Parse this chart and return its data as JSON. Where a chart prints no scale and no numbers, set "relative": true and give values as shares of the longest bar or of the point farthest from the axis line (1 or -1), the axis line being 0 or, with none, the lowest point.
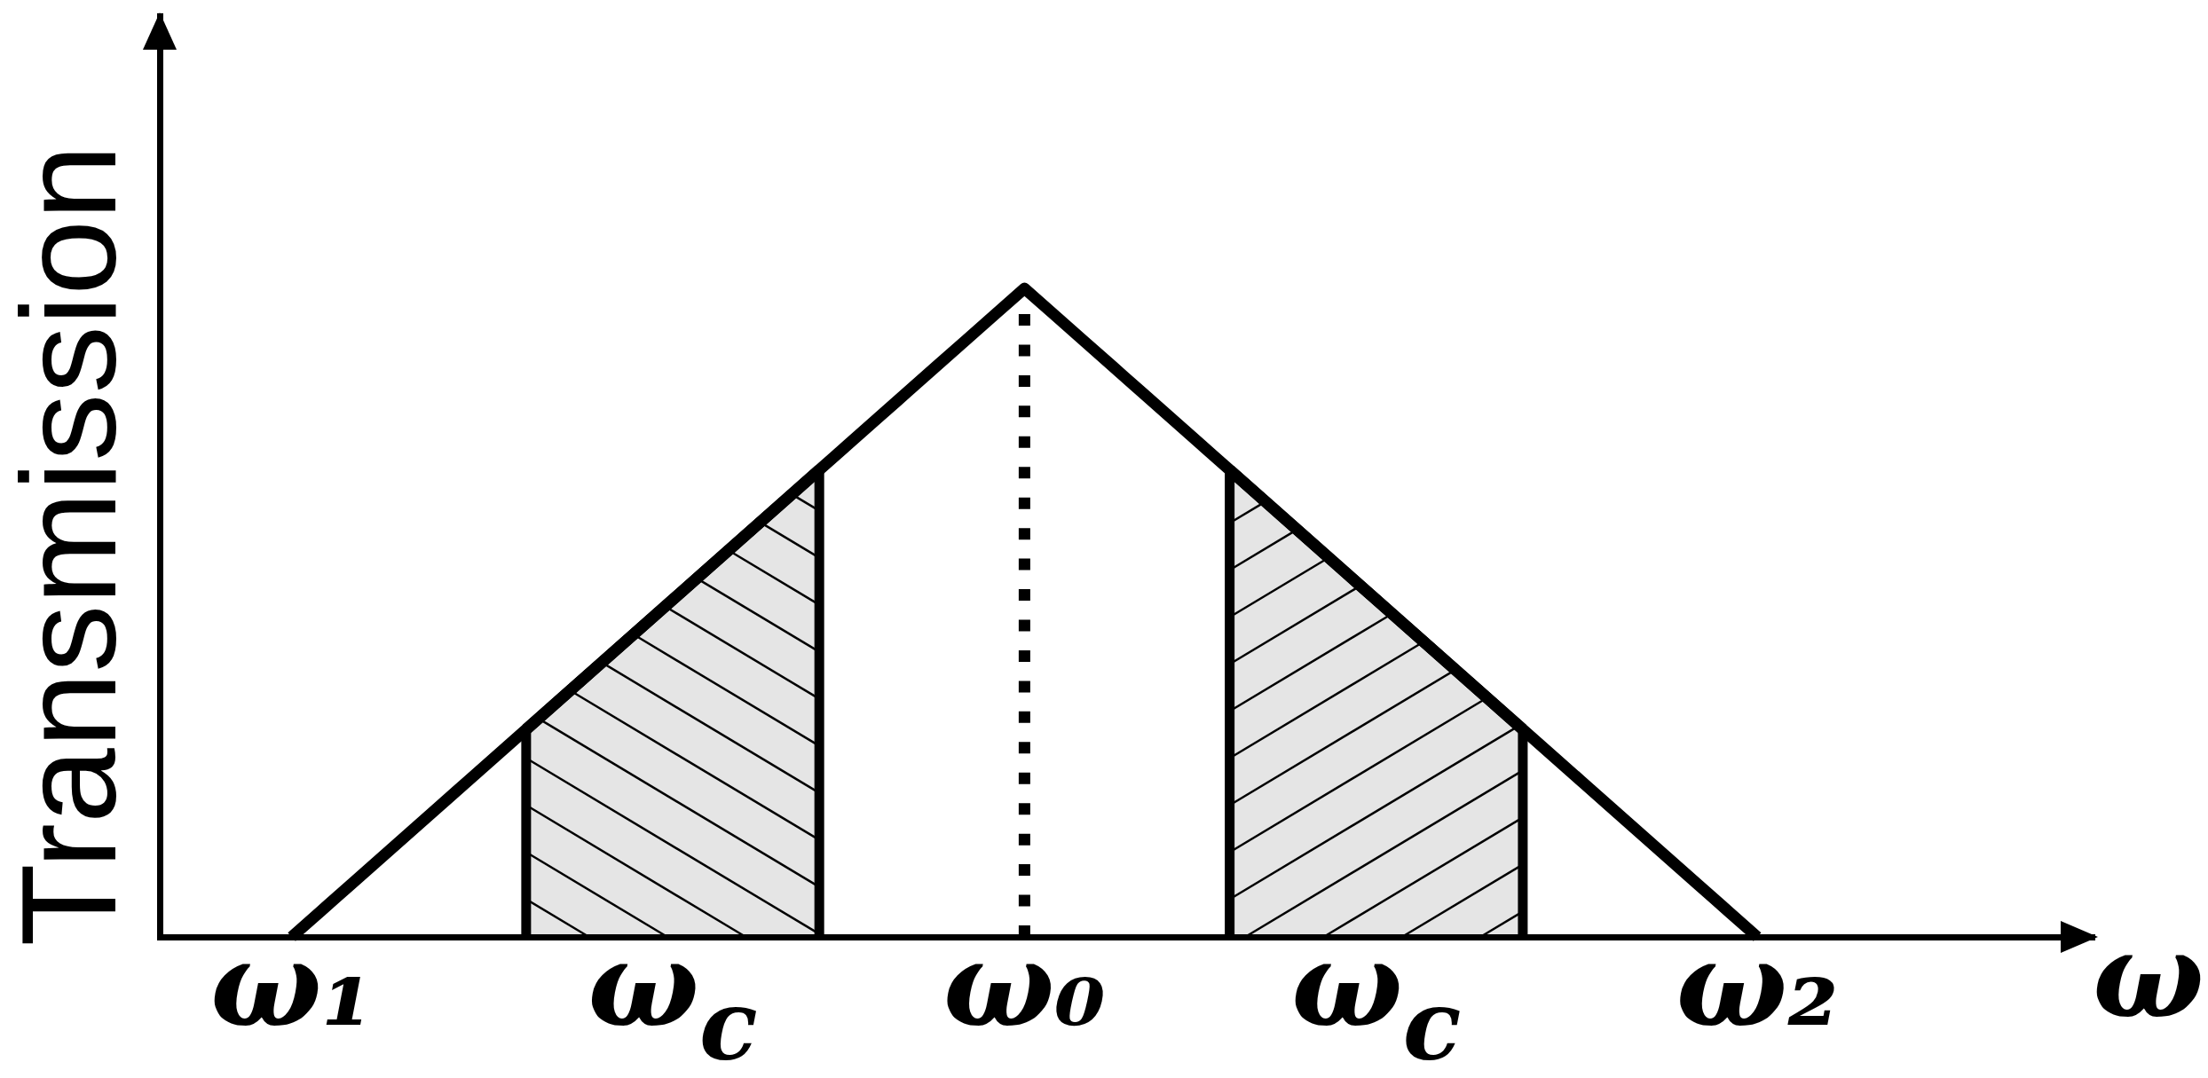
{
  "chart_data": {
    "type": "line",
    "xlabel": "ω",
    "ylabel": "Transmission",
    "relative": true,
    "categories": [
      null,
      null,
      null,
      null,
      "ω₁",
      null,
      null,
      null,
      null,
      null,
      null,
      null,
      null,
      null,
      null,
      null,
      null,
      "ω$_{c}$",
      null,
      null,
      null,
      null,
      null,
      null,
      null,
      null,
      null,
      null,
      null,
      "ω₀",
      null,
      null,
      null,
      null,
      null,
      null,
      null,
      null,
      null,
      null,
      null,
      "ω$_{c}$",
      null,
      null,
      null,
      null,
      null,
      null,
      null,
      null,
      null,
      null,
      null,
      null,
      "ω₂",
      null,
      null,
      null,
      null,
      null,
      null,
      null,
      null,
      null,
      null,
      null
    ],
    "series": [
      {
        "color": "#000000",
        "values": [
          null,
          null,
          null,
          null,
          0,
          0.04,
          0.08,
          0.12,
          0.16,
          0.2,
          0.24,
          0.28,
          0.32,
          0.36,
          0.4,
          0.44,
          0.48,
          0.52,
          0.56,
          0.6,
          0.64,
          0.68,
          0.72,
          0.76,
          0.8,
          0.84,
          0.88,
          0.92,
          0.96,
          1,
          0.96,
          0.92,
          0.88,
          0.84,
          0.8,
          0.76,
          0.72,
          0.68,
          0.64,
          0.6,
          0.56,
          0.52,
          0.48,
          0.44,
          0.4,
          0.36,
          0.32,
          0.28,
          0.24,
          0.2,
          0.16,
          0.12,
          0.08,
          0.04,
          0,
          null,
          null,
          null,
          null,
          null,
          null,
          null,
          null,
          null,
          null,
          null
        ]
      },
      {
        "type": "area",
        "color": "#000000",
        "values": [
          null,
          null,
          null,
          null,
          null,
          null,
          null,
          null,
          null,
          null,
          null,
          null,
          0.32,
          0.36,
          0.4,
          0.44,
          0.48,
          0.52,
          0.56,
          0.6,
          0.64,
          0.68,
          0.72,
          null,
          null,
          null,
          null,
          null,
          null,
          null,
          null,
          null,
          null,
          null,
          null,
          null,
          null,
          null,
          null,
          null,
          null,
          null,
          null,
          null,
          null,
          null,
          null,
          null,
          null,
          null,
          null,
          null,
          null,
          null,
          null,
          null,
          null,
          null,
          null,
          null,
          null,
          null,
          null,
          null,
          null,
          null
        ]
      },
      {
        "type": "area",
        "color": "#000000",
        "values": [
          null,
          null,
          null,
          null,
          null,
          null,
          null,
          null,
          null,
          null,
          null,
          null,
          null,
          null,
          null,
          null,
          null,
          null,
          null,
          null,
          null,
          null,
          null,
          null,
          null,
          null,
          null,
          null,
          null,
          null,
          null,
          null,
          null,
          null,
          null,
          null,
          0.72,
          0.68,
          0.64,
          0.6,
          0.56,
          0.52,
          0.48,
          0.44,
          0.4,
          0.36,
          0.32,
          null,
          null,
          null,
          null,
          null,
          null,
          null,
          null,
          null,
          null,
          null,
          null,
          null,
          null,
          null,
          null,
          null,
          null,
          null
        ]
      }
    ],
    "ref_lines": [
      {
        "axis": "x",
        "value": "ω₀",
        "color": "#000000",
        "line_style": "dotted"
      }
    ],
    "marker": "none",
    "legend": false,
    "grid": false
  }
}
